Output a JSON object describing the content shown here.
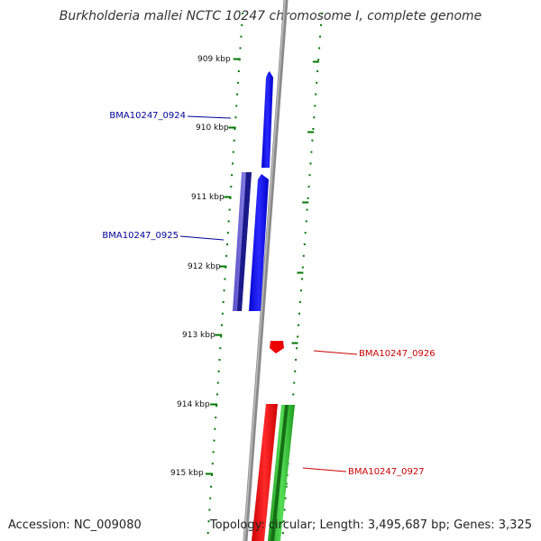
{
  "title": "Burkholderia mallei NCTC 10247 chromosome I, complete genome",
  "footer": {
    "accession": "Accession: NC_009080",
    "summary": "Topology: circular; Length: 3,495,687 bp; Genes: 3,325"
  },
  "colors": {
    "backbone": "#8a8a8a",
    "tick_marks": "#007700",
    "forward_label": "#000099",
    "reverse_label": "#cc0000"
  },
  "map": {
    "kbp_ticks": [
      {
        "label": "909 kbp",
        "kbp": 909
      },
      {
        "label": "910 kbp",
        "kbp": 910
      },
      {
        "label": "911 kbp",
        "kbp": 911
      },
      {
        "label": "912 kbp",
        "kbp": 912
      },
      {
        "label": "913 kbp",
        "kbp": 913
      },
      {
        "label": "914 kbp",
        "kbp": 914
      },
      {
        "label": "915 kbp",
        "kbp": 915
      }
    ],
    "genes": [
      {
        "id": "BMA10247_0924",
        "label": "BMA10247_0924",
        "strand": "forward",
        "color": "#0000ff"
      },
      {
        "id": "BMA10247_0925",
        "label": "BMA10247_0925",
        "strand": "forward",
        "color": "#0000ff",
        "feature_color": "#6a5acd"
      },
      {
        "id": "BMA10247_0926",
        "label": "BMA10247_0926",
        "strand": "reverse",
        "color": "#ff0000"
      },
      {
        "id": "BMA10247_0927",
        "label": "BMA10247_0927",
        "strand": "reverse",
        "color": "#ff0000",
        "feature_color": "#33bb33"
      }
    ]
  }
}
